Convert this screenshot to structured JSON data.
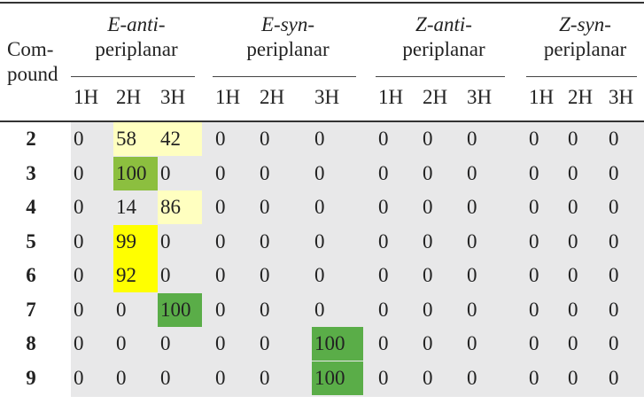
{
  "table": {
    "compound_header": [
      "Com-",
      "pound"
    ],
    "groups": [
      {
        "stereo": "E",
        "conf": "anti",
        "line2": "periplanar"
      },
      {
        "stereo": "E",
        "conf": "syn",
        "line2": "periplanar"
      },
      {
        "stereo": "Z",
        "conf": "anti",
        "line2": "periplanar"
      },
      {
        "stereo": "Z",
        "conf": "syn",
        "line2": "periplanar"
      }
    ],
    "subheaders": [
      "1H",
      "2H",
      "3H",
      "1H",
      "2H",
      "3H",
      "1H",
      "2H",
      "3H",
      "1H",
      "2H",
      "3H"
    ],
    "rows": [
      {
        "compound": "2",
        "values": [
          "0",
          "58",
          "42",
          "0",
          "0",
          "0",
          "0",
          "0",
          "0",
          "0",
          "0",
          "0"
        ]
      },
      {
        "compound": "3",
        "values": [
          "0",
          "100",
          "0",
          "0",
          "0",
          "0",
          "0",
          "0",
          "0",
          "0",
          "0",
          "0"
        ]
      },
      {
        "compound": "4",
        "values": [
          "0",
          "14",
          "86",
          "0",
          "0",
          "0",
          "0",
          "0",
          "0",
          "0",
          "0",
          "0"
        ]
      },
      {
        "compound": "5",
        "values": [
          "0",
          "99",
          "0",
          "0",
          "0",
          "0",
          "0",
          "0",
          "0",
          "0",
          "0",
          "0"
        ]
      },
      {
        "compound": "6",
        "values": [
          "0",
          "92",
          "0",
          "0",
          "0",
          "0",
          "0",
          "0",
          "0",
          "0",
          "0",
          "0"
        ]
      },
      {
        "compound": "7",
        "values": [
          "0",
          "0",
          "100",
          "0",
          "0",
          "0",
          "0",
          "0",
          "0",
          "0",
          "0",
          "0"
        ]
      },
      {
        "compound": "8",
        "values": [
          "0",
          "0",
          "0",
          "0",
          "0",
          "100",
          "0",
          "0",
          "0",
          "0",
          "0",
          "0"
        ]
      },
      {
        "compound": "9",
        "values": [
          "0",
          "0",
          "0",
          "0",
          "0",
          "100",
          "0",
          "0",
          "0",
          "0",
          "0",
          "0"
        ]
      }
    ],
    "highlight_colors": {
      "pale_yellow": "#ffffc0",
      "bright_yellow": "#ffff00",
      "olive_green": "#8cbf3f",
      "green": "#5aad48"
    },
    "highlights": [
      {
        "row": 0,
        "col": 1,
        "color": "pale_yellow"
      },
      {
        "row": 0,
        "col": 2,
        "color": "pale_yellow"
      },
      {
        "row": 1,
        "col": 1,
        "color": "olive_green"
      },
      {
        "row": 2,
        "col": 2,
        "color": "pale_yellow"
      },
      {
        "row": 3,
        "col": 1,
        "color": "bright_yellow"
      },
      {
        "row": 4,
        "col": 1,
        "color": "bright_yellow"
      },
      {
        "row": 5,
        "col": 2,
        "color": "green"
      },
      {
        "row": 6,
        "col": 5,
        "color": "green"
      },
      {
        "row": 7,
        "col": 5,
        "color": "green"
      }
    ]
  }
}
